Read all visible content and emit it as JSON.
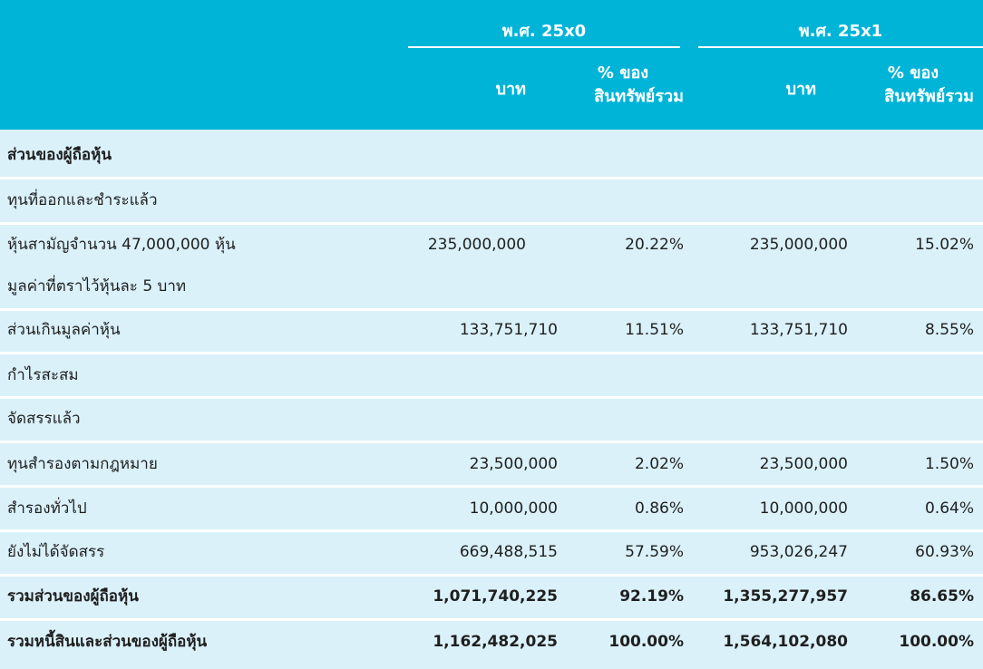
{
  "header": {
    "year1": "พ.ศ. 25x0",
    "year2": "พ.ศ. 25x1",
    "col_baht_1": "บาท",
    "col_pct_1_line1": "% ของ",
    "col_pct_1_line2": "สินทรัพย์รวม",
    "col_baht_2": "บาท",
    "col_pct_2_line1": "% ของ",
    "col_pct_2_line2": "สินทรัพย์รวม"
  },
  "rows": [
    {
      "label": "ส่วนของผู้ถือหุ้น",
      "label2": "",
      "baht1": "",
      "pct1": "",
      "baht2": "",
      "pct2": ""
    },
    {
      "label": "ทุนที่ออกและชำระแล้ว",
      "label2": "",
      "baht1": "",
      "pct1": "",
      "baht2": "",
      "pct2": ""
    },
    {
      "label": "หุ้นสามัญจำนวน 47,000,000 หุ้น",
      "label2": "มูลค่าที่ตราไว้หุ้นละ 5 บาท",
      "baht1": "235,000,000",
      "pct1": "20.22%",
      "baht2": "235,000,000",
      "pct2": "15.02%"
    },
    {
      "label": "ส่วนเกินมูลค่าหุ้น",
      "label2": "",
      "baht1": "133,751,710",
      "pct1": "11.51%",
      "baht2": "133,751,710",
      "pct2": "8.55%"
    },
    {
      "label": "กำไรสะสม",
      "label2": "",
      "baht1": "",
      "pct1": "",
      "baht2": "",
      "pct2": ""
    },
    {
      "label": "จัดสรรแล้ว",
      "label2": "",
      "baht1": "",
      "pct1": "",
      "baht2": "",
      "pct2": ""
    },
    {
      "label": "ทุนสำรองตามกฎหมาย",
      "label2": "",
      "baht1": "23,500,000",
      "pct1": "2.02%",
      "baht2": "23,500,000",
      "pct2": "1.50%"
    },
    {
      "label": "สำรองทั่วไป",
      "label2": "",
      "baht1": "10,000,000",
      "pct1": "0.86%",
      "baht2": "10,000,000",
      "pct2": "0.64%"
    },
    {
      "label": "ยังไม่ได้จัดสรร",
      "label2": "",
      "baht1": "669,488,515",
      "pct1": "57.59%",
      "baht2": "953,026,247",
      "pct2": "60.93%"
    },
    {
      "label": "รวมส่วนของผู้ถือหุ้น",
      "label2": "",
      "baht1": "1,071,740,225",
      "pct1": "92.19%",
      "baht2": "1,355,277,957",
      "pct2": "86.65%"
    },
    {
      "label": "รวมหนี้สินและส่วนของผู้ถือหุ้น",
      "label2": "",
      "baht1": "1,162,482,025",
      "pct1": "100.00%",
      "baht2": "1,564,102,080",
      "pct2": "100.00%"
    }
  ],
  "colors": {
    "header_bg": "#00b4d8",
    "body_bg": "#daf1fa",
    "separator": "#ffffff"
  }
}
